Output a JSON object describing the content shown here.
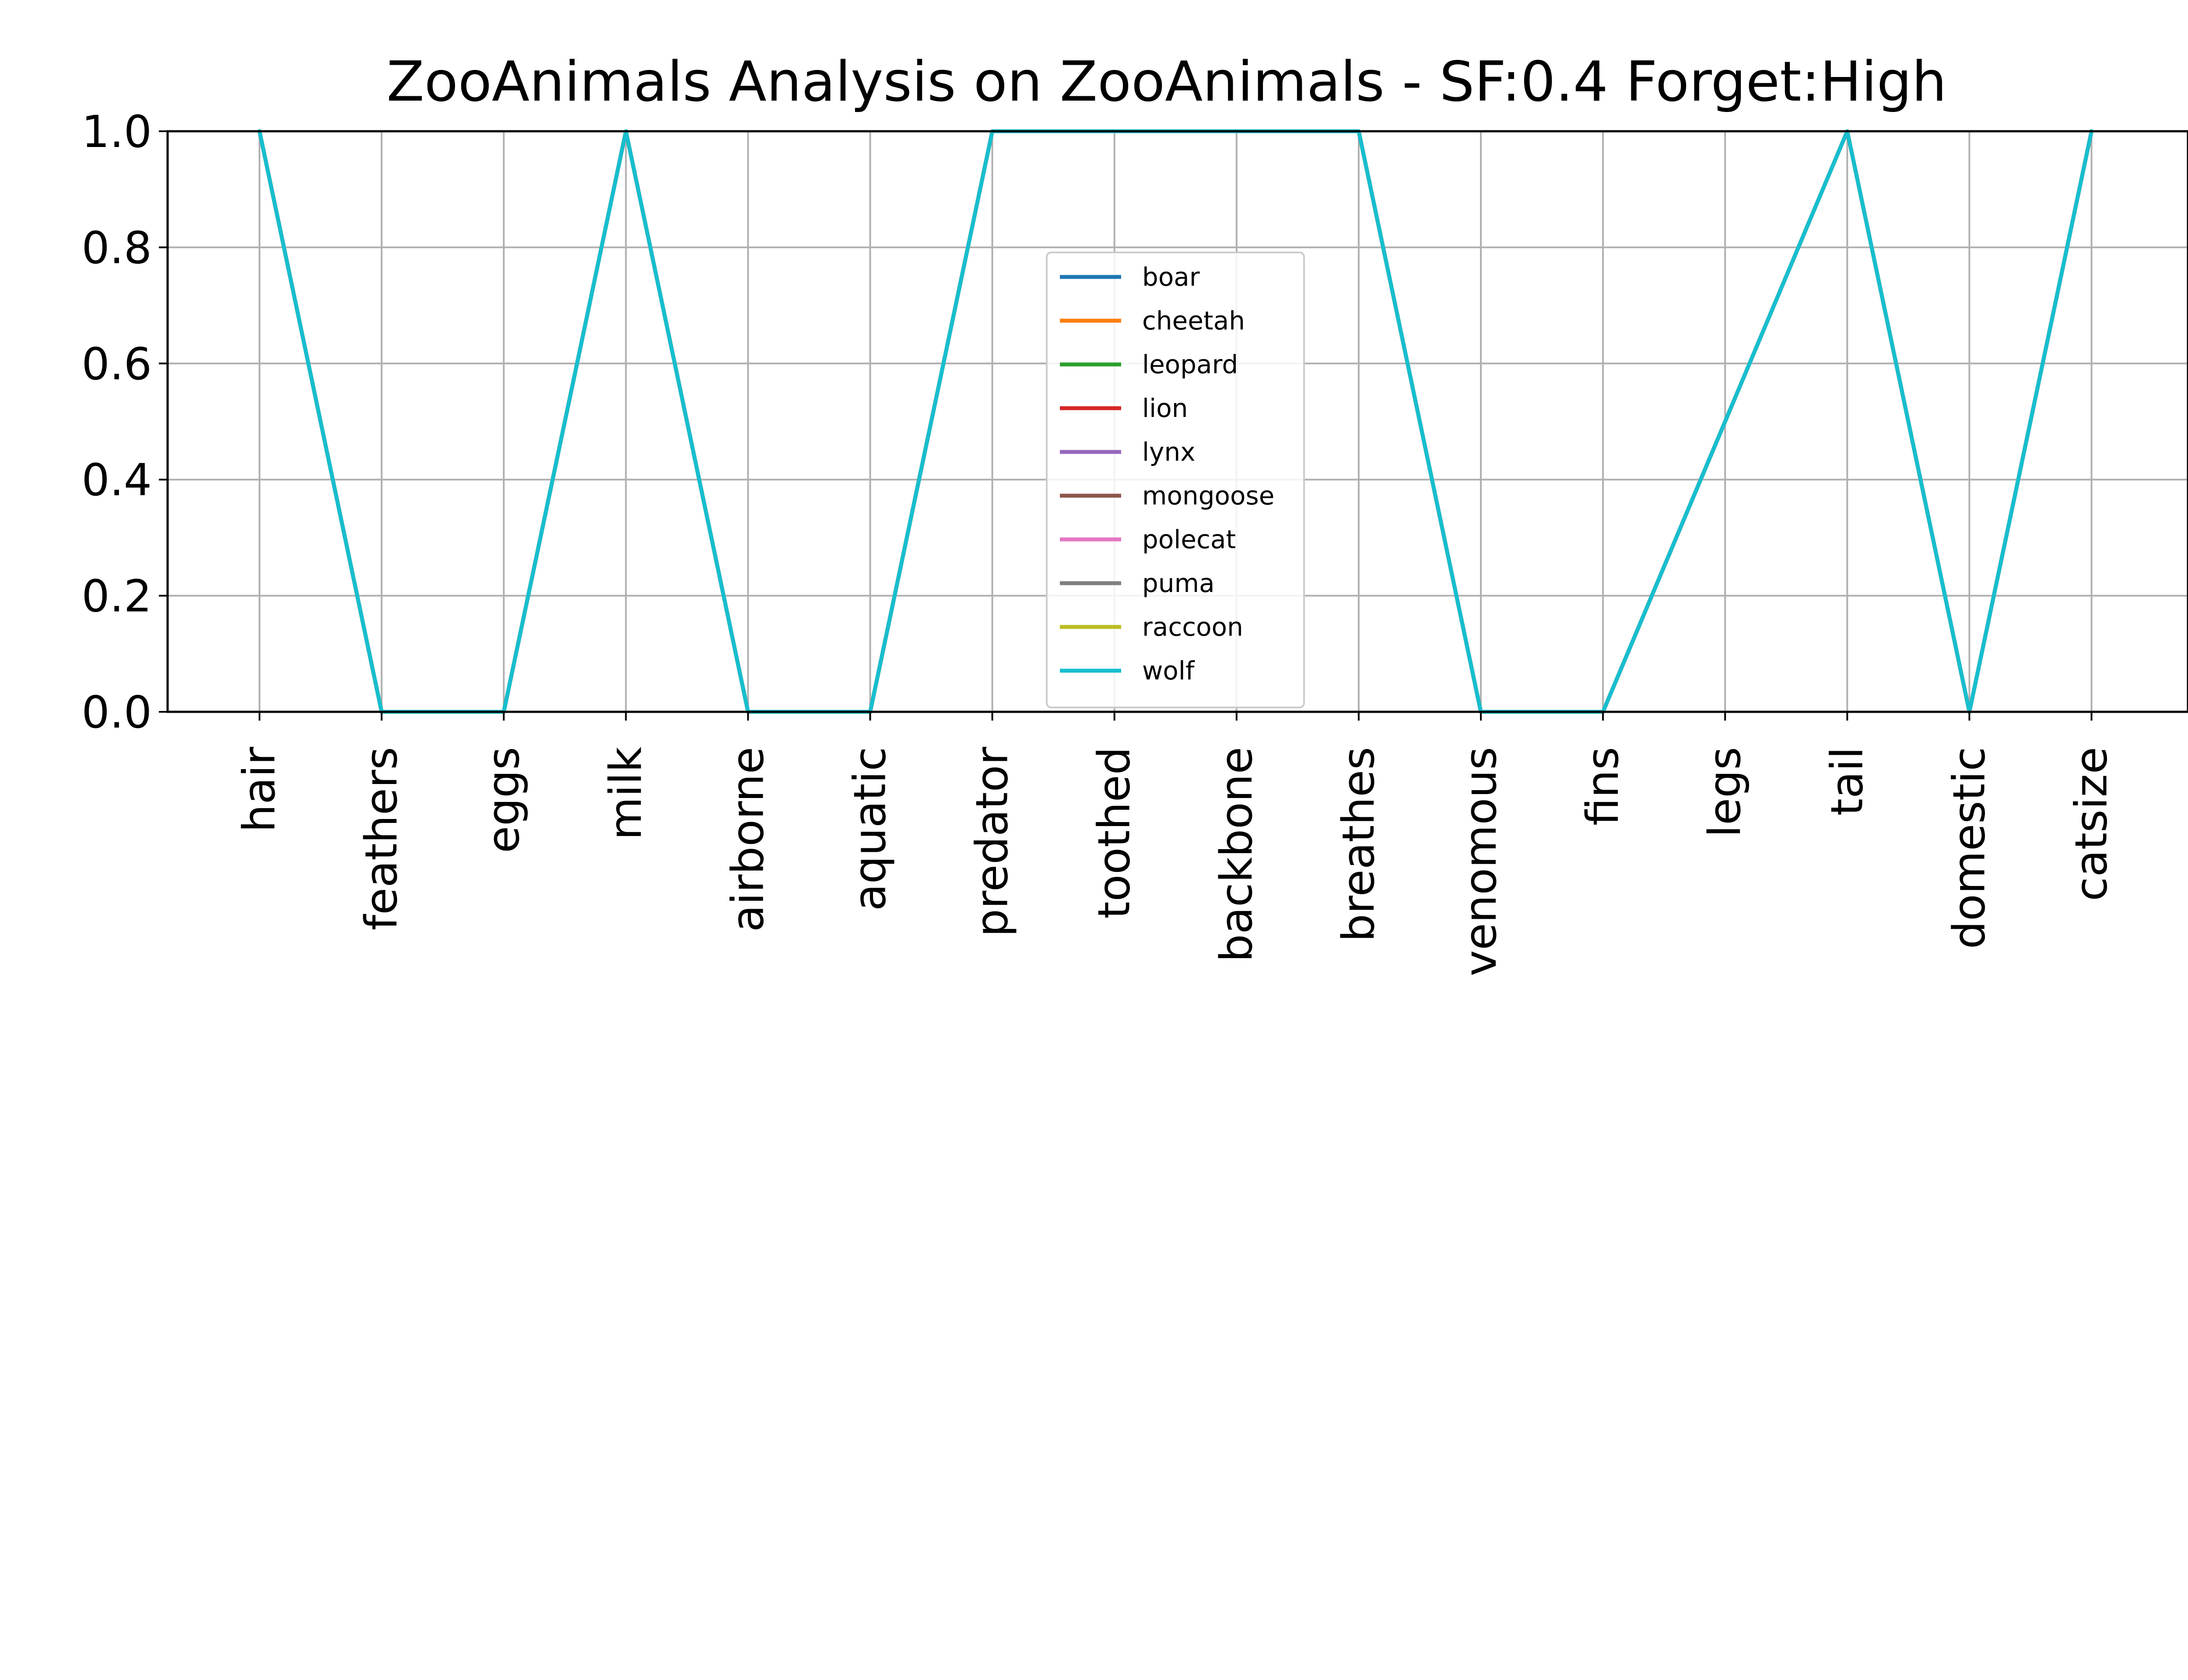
{
  "chart_data": {
    "type": "line",
    "title": "ZooAnimals Analysis on ZooAnimals - SF:0.4 Forget:High",
    "xlabel": "",
    "ylabel": "",
    "categories": [
      "hair",
      "feathers",
      "eggs",
      "milk",
      "airborne",
      "aquatic",
      "predator",
      "toothed",
      "backbone",
      "breathes",
      "venomous",
      "fins",
      "legs",
      "tail",
      "domestic",
      "catsize"
    ],
    "ylim": [
      0,
      1.0
    ],
    "yticks": [
      "0.0",
      "0.2",
      "0.4",
      "0.6",
      "0.8",
      "1.0"
    ],
    "grid": true,
    "legend_position": "center",
    "series": [
      {
        "name": "boar",
        "color": "#1f77b4",
        "values": [
          1,
          0,
          0,
          1,
          0,
          0,
          1,
          1,
          1,
          1,
          0,
          0,
          0.5,
          1,
          0,
          1
        ]
      },
      {
        "name": "cheetah",
        "color": "#ff7f0e",
        "values": [
          1,
          0,
          0,
          1,
          0,
          0,
          1,
          1,
          1,
          1,
          0,
          0,
          0.5,
          1,
          0,
          1
        ]
      },
      {
        "name": "leopard",
        "color": "#2ca02c",
        "values": [
          1,
          0,
          0,
          1,
          0,
          0,
          1,
          1,
          1,
          1,
          0,
          0,
          0.5,
          1,
          0,
          1
        ]
      },
      {
        "name": "lion",
        "color": "#d62728",
        "values": [
          1,
          0,
          0,
          1,
          0,
          0,
          1,
          1,
          1,
          1,
          0,
          0,
          0.5,
          1,
          0,
          1
        ]
      },
      {
        "name": "lynx",
        "color": "#9467bd",
        "values": [
          1,
          0,
          0,
          1,
          0,
          0,
          1,
          1,
          1,
          1,
          0,
          0,
          0.5,
          1,
          0,
          1
        ]
      },
      {
        "name": "mongoose",
        "color": "#8c564b",
        "values": [
          1,
          0,
          0,
          1,
          0,
          0,
          1,
          1,
          1,
          1,
          0,
          0,
          0.5,
          1,
          0,
          1
        ]
      },
      {
        "name": "polecat",
        "color": "#e377c2",
        "values": [
          1,
          0,
          0,
          1,
          0,
          0,
          1,
          1,
          1,
          1,
          0,
          0,
          0.5,
          1,
          0,
          1
        ]
      },
      {
        "name": "puma",
        "color": "#7f7f7f",
        "values": [
          1,
          0,
          0,
          1,
          0,
          0,
          1,
          1,
          1,
          1,
          0,
          0,
          0.5,
          1,
          0,
          1
        ]
      },
      {
        "name": "raccoon",
        "color": "#bcbd22",
        "values": [
          1,
          0,
          0,
          1,
          0,
          0,
          1,
          1,
          1,
          1,
          0,
          0,
          0.5,
          1,
          0,
          1
        ]
      },
      {
        "name": "wolf",
        "color": "#17becf",
        "values": [
          1,
          0,
          0,
          1,
          0,
          0,
          1,
          1,
          1,
          1,
          0,
          0,
          0.5,
          1,
          0,
          1
        ]
      }
    ]
  }
}
